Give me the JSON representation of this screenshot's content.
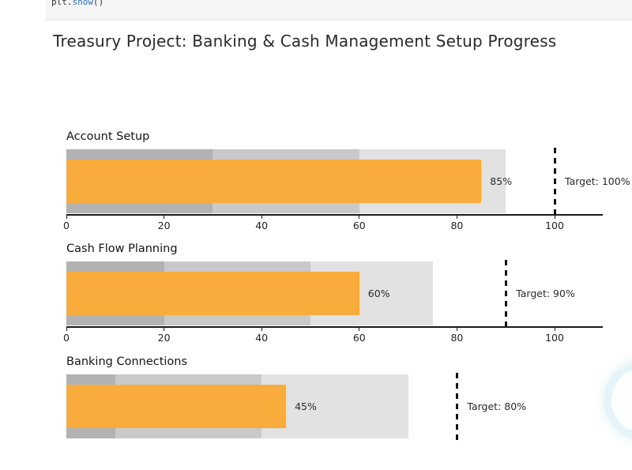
{
  "code_cell": {
    "prefix": "plt.",
    "function": "show",
    "suffix": "()"
  },
  "page_title": "Treasury Project: Banking & Cash Management Setup Progress",
  "colors": {
    "bar": "#f7ac3b",
    "band_dark": "#b2b2b2",
    "band_mid": "#c9c9c9",
    "band_light": "#e2e2e2",
    "target_line": "#111111",
    "code_function": "#3273b8",
    "code_plain": "#333333"
  },
  "chart_data": [
    {
      "type": "bullet",
      "title": "Account Setup",
      "value": 85,
      "value_label": "85%",
      "target": 100,
      "target_label": "Target: 100%",
      "bands": [
        30,
        60,
        90
      ],
      "xlim": [
        0,
        110
      ],
      "xticks": [
        0,
        20,
        40,
        60,
        80,
        100
      ],
      "axis_visible": true
    },
    {
      "type": "bullet",
      "title": "Cash Flow Planning",
      "value": 60,
      "value_label": "60%",
      "target": 90,
      "target_label": "Target: 90%",
      "bands": [
        20,
        50,
        75
      ],
      "xlim": [
        0,
        110
      ],
      "xticks": [
        0,
        20,
        40,
        60,
        80,
        100
      ],
      "axis_visible": true
    },
    {
      "type": "bullet",
      "title": "Banking Connections",
      "value": 45,
      "value_label": "45%",
      "target": 80,
      "target_label": "Target: 80%",
      "bands": [
        10,
        40,
        70
      ],
      "xlim": [
        0,
        110
      ],
      "xticks": [
        0,
        20,
        40,
        60,
        80,
        100
      ],
      "axis_visible": false
    }
  ]
}
